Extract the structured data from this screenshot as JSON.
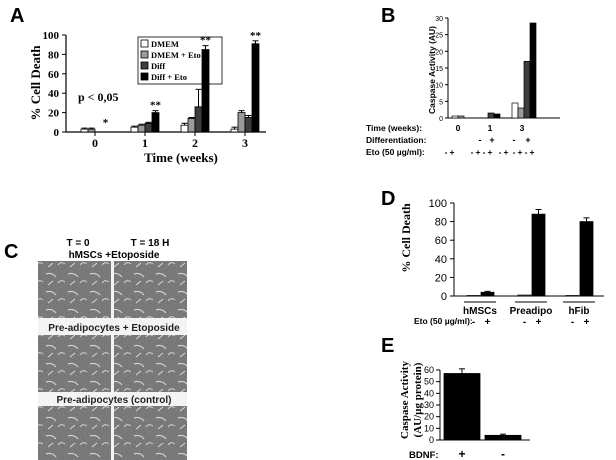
{
  "panel_labels": {
    "a": "A",
    "b": "B",
    "c": "C",
    "d": "D",
    "e": "E"
  },
  "chart_data": [
    {
      "id": "A",
      "type": "bar",
      "xlabel": "Time (weeks)",
      "ylabel": "% Cell Death",
      "ylim": [
        0,
        100
      ],
      "yticks": [
        0,
        20,
        40,
        60,
        80,
        100
      ],
      "categories": [
        "0",
        "1",
        "2",
        "3"
      ],
      "series": [
        {
          "name": "DMEM",
          "color": "#ffffff",
          "values": [
            3,
            5,
            7,
            3
          ],
          "errors": [
            1,
            1,
            2,
            2
          ]
        },
        {
          "name": "DMEM + Eto",
          "color": "#9a9a9a",
          "values": [
            3,
            7,
            14,
            20
          ],
          "errors": [
            1,
            1,
            1,
            2
          ]
        },
        {
          "name": "Diff",
          "color": "#3d3d3d",
          "values": [
            0,
            9,
            26,
            15
          ],
          "errors": [
            0,
            1,
            18,
            2
          ]
        },
        {
          "name": "Diff + Eto",
          "color": "#000000",
          "values": [
            0,
            20,
            85,
            91
          ],
          "errors": [
            0,
            2,
            4,
            3
          ]
        }
      ],
      "annotation": "p < 0,05",
      "marks": [
        "*",
        "**",
        "**",
        "**"
      ],
      "legend": "top-right"
    },
    {
      "id": "B",
      "type": "bar",
      "ylabel": "Caspase Activity (AU)",
      "ylim": [
        0,
        30
      ],
      "yticks": [
        0,
        5,
        10,
        15,
        20,
        25,
        30
      ],
      "bars": [
        {
          "color": "#ffffff",
          "value": 0.6
        },
        {
          "color": "#9a9a9a",
          "value": 0.6
        },
        {
          "color": "#3d3d3d",
          "value": 1.5
        },
        {
          "color": "#000000",
          "value": 1.2
        },
        {
          "color": "#ffffff",
          "value": 4.5
        },
        {
          "color": "#9a9a9a",
          "value": 3
        },
        {
          "color": "#3d3d3d",
          "value": 17
        },
        {
          "color": "#000000",
          "value": 28.5
        }
      ],
      "row_labels": [
        "Time (weeks):",
        "Differentiation:",
        "Eto (50 µg/ml):"
      ],
      "time_values": [
        "0",
        "1",
        "3"
      ],
      "diff_marks": [
        "-",
        "+",
        "-",
        "+"
      ],
      "eto_marks": [
        "-",
        "+",
        "-",
        "+",
        "-",
        "+",
        "-",
        "+",
        "-",
        "+",
        "-",
        "+"
      ]
    },
    {
      "id": "D",
      "type": "bar",
      "ylabel": "% Cell Death",
      "ylim": [
        0,
        100
      ],
      "yticks": [
        0,
        20,
        40,
        60,
        80,
        100
      ],
      "groups": [
        "hMSCs",
        "Preadipo",
        "hFib"
      ],
      "bars": [
        {
          "color": "#ffffff",
          "value": 0.5,
          "error": 0
        },
        {
          "color": "#000000",
          "value": 4,
          "error": 1
        },
        {
          "color": "#ffffff",
          "value": 1,
          "error": 0
        },
        {
          "color": "#000000",
          "value": 88,
          "error": 5
        },
        {
          "color": "#ffffff",
          "value": 0.5,
          "error": 0
        },
        {
          "color": "#000000",
          "value": 80,
          "error": 4
        }
      ],
      "treatment_label": "Eto (50 µg/ml):",
      "marks": [
        "-",
        "+",
        "-",
        "+",
        "-",
        "+"
      ]
    },
    {
      "id": "E",
      "type": "bar",
      "ylabel_line1": "Caspase Activity",
      "ylabel_line2": "(AU/µg protein)",
      "ylim": [
        0,
        60
      ],
      "yticks": [
        0,
        10,
        20,
        30,
        40,
        50,
        60
      ],
      "bars": [
        {
          "color": "#000000",
          "value": 57,
          "error": 4
        },
        {
          "color": "#000000",
          "value": 4,
          "error": 1
        }
      ],
      "treatment_label": "BDNF:",
      "marks": [
        "+",
        "-"
      ]
    }
  ],
  "micrographs": {
    "col_left": "T = 0",
    "col_right": "T = 18 H",
    "rows": [
      "hMSCs +Etoposide",
      "Pre-adipocytes + Etoposide",
      "Pre-adipocytes (control)"
    ]
  }
}
